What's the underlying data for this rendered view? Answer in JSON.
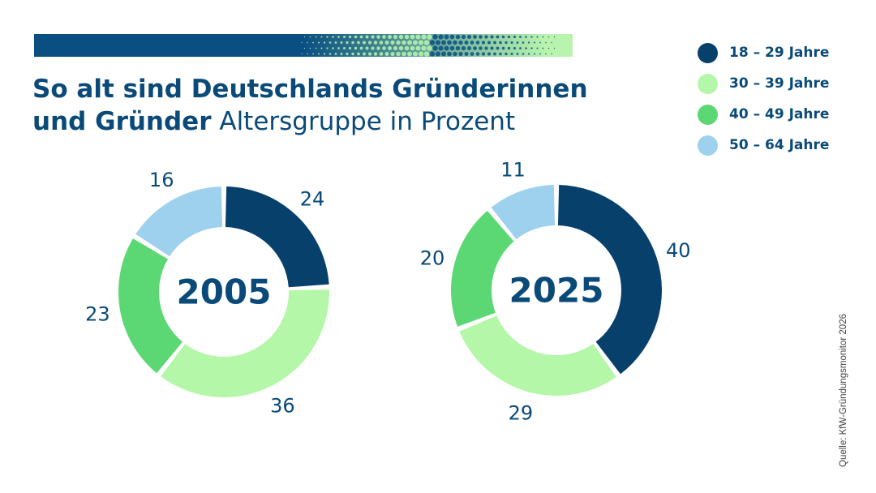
{
  "header": {
    "title_bold": "So alt sind Deutschlands Gründerinnen",
    "title_bold_line2": "und Gründer",
    "title_light": "Altersgruppe in Prozent"
  },
  "legend": [
    {
      "label": "18 – 29 Jahre",
      "color": "#06406b"
    },
    {
      "label": "30 – 39 Jahre",
      "color": "#b4f7a8"
    },
    {
      "label": "40 – 49 Jahre",
      "color": "#5bd873"
    },
    {
      "label": "50 – 64 Jahre",
      "color": "#9dd1ee"
    }
  ],
  "chart_data": [
    {
      "type": "pie",
      "variant": "donut",
      "center_label": "2005",
      "categories": [
        "18 – 29 Jahre",
        "30 – 39 Jahre",
        "40 – 49 Jahre",
        "50 – 64 Jahre"
      ],
      "values": [
        24,
        36,
        23,
        16
      ],
      "colors": [
        "#06406b",
        "#b4f7a8",
        "#5bd873",
        "#9dd1ee"
      ]
    },
    {
      "type": "pie",
      "variant": "donut",
      "center_label": "2025",
      "categories": [
        "18 – 29 Jahre",
        "30 – 39 Jahre",
        "40 – 49 Jahre",
        "50 – 64 Jahre"
      ],
      "values": [
        40,
        29,
        20,
        11
      ],
      "colors": [
        "#06406b",
        "#b4f7a8",
        "#5bd873",
        "#9dd1ee"
      ]
    }
  ],
  "source": "Quelle: KfW-Gründungsmonitor 2026"
}
